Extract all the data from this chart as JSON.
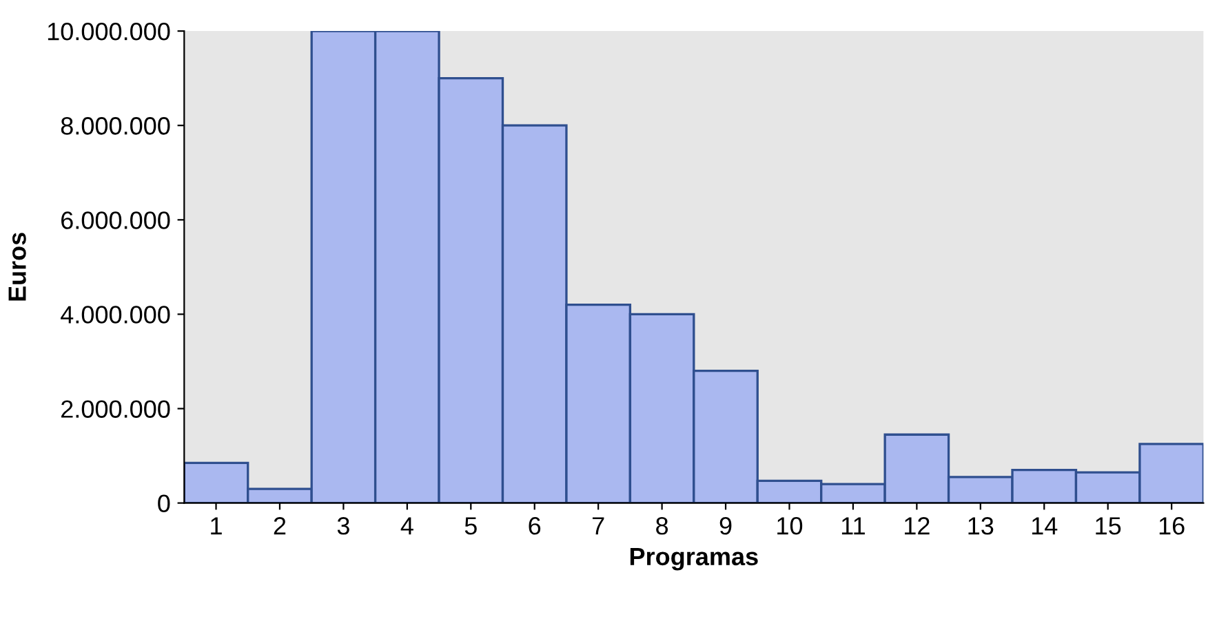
{
  "chart_data": {
    "type": "bar",
    "xlabel": "Programas",
    "ylabel": "Euros",
    "categories": [
      "1",
      "2",
      "3",
      "4",
      "5",
      "6",
      "7",
      "8",
      "9",
      "10",
      "11",
      "12",
      "13",
      "14",
      "15",
      "16"
    ],
    "values": [
      850000,
      300000,
      10000000,
      10000000,
      9000000,
      8000000,
      4200000,
      4000000,
      2800000,
      470000,
      400000,
      1450000,
      550000,
      700000,
      650000,
      1250000
    ],
    "color": "#aab8f0",
    "ylim": [
      0,
      10000000
    ],
    "yticks": [
      {
        "value": 0,
        "label": "0"
      },
      {
        "value": 2000000,
        "label": "2.000.000"
      },
      {
        "value": 4000000,
        "label": "4.000.000"
      },
      {
        "value": 6000000,
        "label": "6.000.000"
      },
      {
        "value": 8000000,
        "label": "8.000.000"
      },
      {
        "value": 10000000,
        "label": "10.000.000"
      }
    ],
    "grid": false,
    "legend": false
  }
}
